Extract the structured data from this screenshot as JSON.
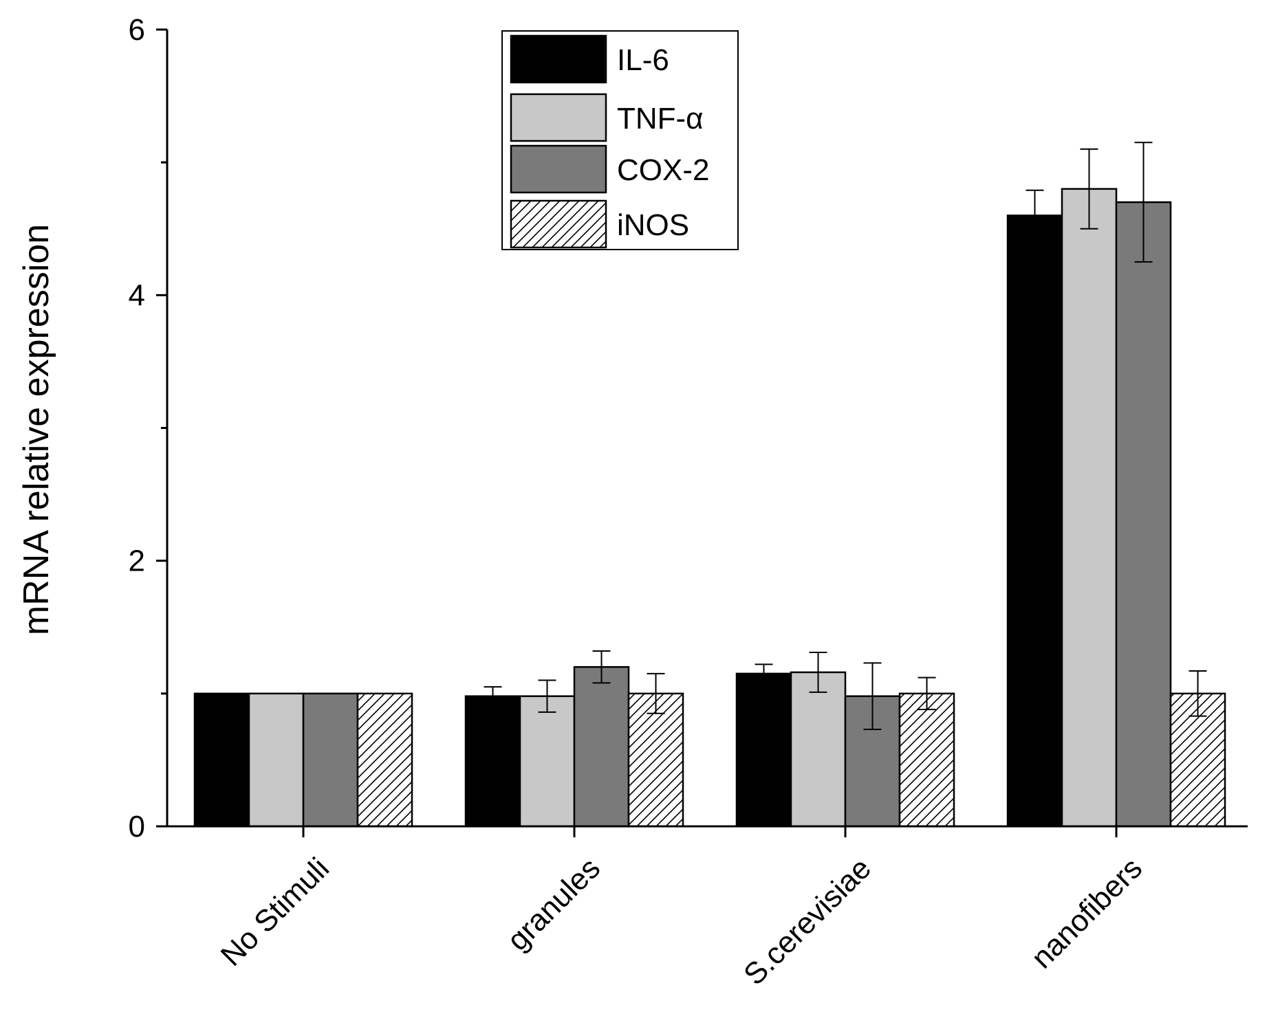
{
  "chart_data": {
    "type": "bar",
    "title": "",
    "xlabel": "",
    "ylabel": "mRNA relative expression",
    "ylim": [
      0,
      6
    ],
    "yticks": [
      "0",
      "2",
      "4",
      "6"
    ],
    "categories": [
      "No Stimuli",
      "granules",
      "S.cerevisiae",
      "nanofibers"
    ],
    "legend_position": "top-center",
    "series": [
      {
        "name": "IL-6",
        "fill": "#000000",
        "pattern": "solid",
        "values": [
          1.0,
          0.98,
          1.15,
          4.6
        ],
        "errors": [
          0,
          0.07,
          0.07,
          0.19
        ]
      },
      {
        "name": "TNF-α",
        "fill": "#c8c8c8",
        "pattern": "solid",
        "values": [
          1.0,
          0.98,
          1.16,
          4.8
        ],
        "errors": [
          0,
          0.12,
          0.15,
          0.3
        ]
      },
      {
        "name": "COX-2",
        "fill": "#7a7a7a",
        "pattern": "solid",
        "values": [
          1.0,
          1.2,
          0.98,
          4.7
        ],
        "errors": [
          0,
          0.12,
          0.25,
          0.45
        ]
      },
      {
        "name": "iNOS",
        "fill": "#ffffff",
        "pattern": "hatch",
        "values": [
          1.0,
          1.0,
          1.0,
          1.0
        ],
        "errors": [
          0,
          0.15,
          0.12,
          0.17
        ]
      }
    ]
  }
}
